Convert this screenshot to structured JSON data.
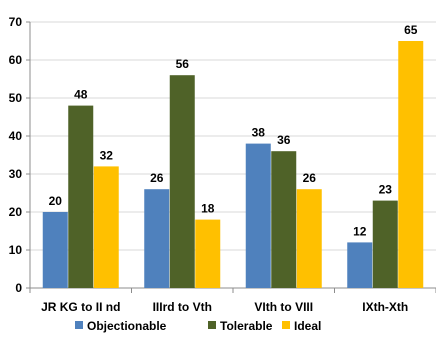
{
  "chart_data": {
    "type": "bar",
    "categories": [
      "JR KG to II nd",
      "IIIrd to Vth",
      "VIth to VIII",
      "IXth-Xth"
    ],
    "series": [
      {
        "name": "Objectionable",
        "color": "#4f81bd",
        "values": [
          20,
          26,
          38,
          12
        ]
      },
      {
        "name": "Tolerable",
        "color": "#4f6228",
        "values": [
          48,
          56,
          36,
          23
        ]
      },
      {
        "name": "Ideal",
        "color": "#ffc000",
        "values": [
          32,
          18,
          26,
          65
        ]
      }
    ],
    "yticks": [
      0,
      10,
      20,
      30,
      40,
      50,
      60,
      70
    ],
    "ylim": [
      0,
      70
    ],
    "grid": true,
    "legend_position": "bottom",
    "title": "",
    "xlabel": "",
    "ylabel": ""
  }
}
